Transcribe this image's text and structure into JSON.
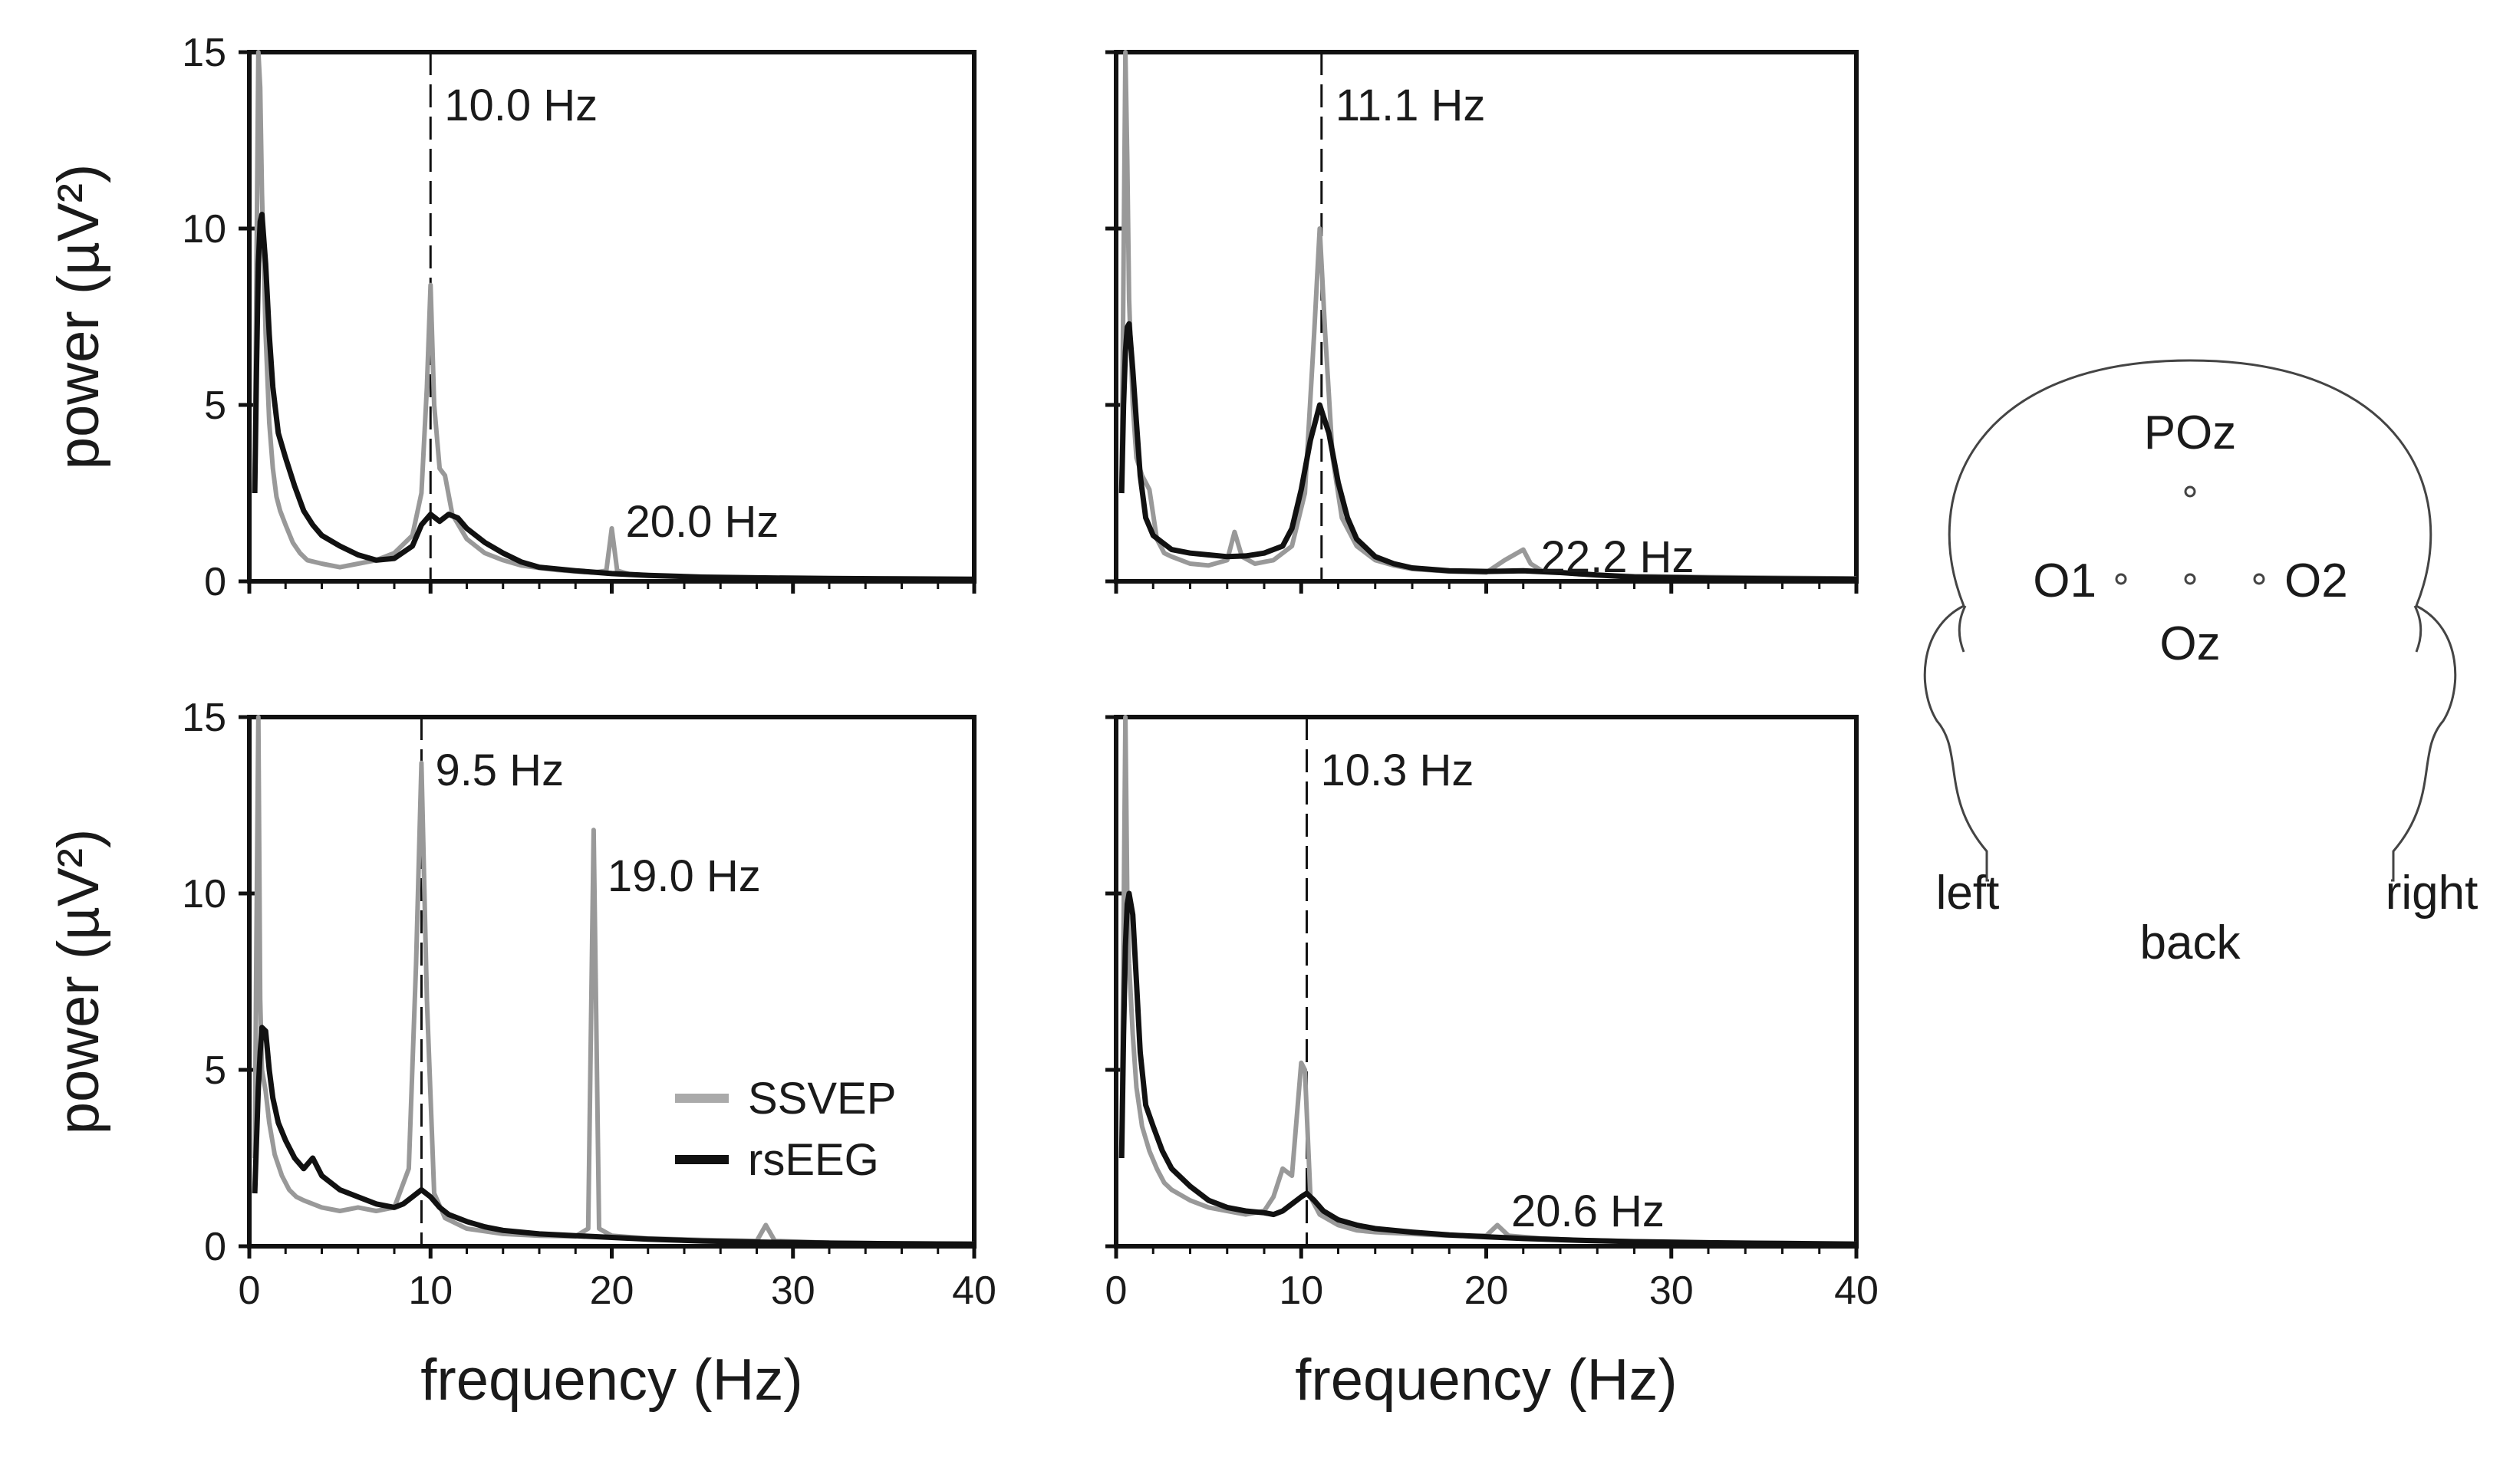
{
  "chart_data": [
    {
      "type": "line",
      "panel": "top-left",
      "ylabel": "power (µV²)",
      "xlabel": "",
      "xlim": [
        0,
        40
      ],
      "ylim": [
        0,
        15
      ],
      "xticks": [
        "0",
        "10",
        "20",
        "30",
        "40"
      ],
      "yticks": [
        "0",
        "5",
        "10",
        "15"
      ],
      "show_xticks": false,
      "show_ylabels": true,
      "marker_line": 10.0,
      "peak_labels": [
        {
          "text": "10.0 Hz",
          "x": 10.0,
          "y": 13.5
        },
        {
          "text": "20.0 Hz",
          "x": 20.0,
          "y": 1.7
        }
      ],
      "series": [
        {
          "name": "SSVEP",
          "color": "#999999",
          "x": [
            0.3,
            0.4,
            0.5,
            0.6,
            0.7,
            0.9,
            1.1,
            1.3,
            1.5,
            1.7,
            2.0,
            2.4,
            2.8,
            3.2,
            4,
            5,
            6,
            7,
            8,
            9,
            9.5,
            9.8,
            10.0,
            10.2,
            10.5,
            10.8,
            11.2,
            12,
            13,
            14,
            15,
            16,
            17,
            18,
            19,
            19.7,
            20.0,
            20.3,
            21,
            23,
            25,
            28,
            32,
            36,
            40
          ],
          "y": [
            2.5,
            9,
            16,
            14,
            11,
            7,
            4.5,
            3.2,
            2.4,
            2.0,
            1.6,
            1.1,
            0.8,
            0.6,
            0.5,
            0.4,
            0.5,
            0.6,
            0.8,
            1.3,
            2.5,
            5.5,
            8.4,
            5,
            3.2,
            3.0,
            1.9,
            1.2,
            0.8,
            0.6,
            0.45,
            0.38,
            0.32,
            0.28,
            0.25,
            0.3,
            1.5,
            0.3,
            0.2,
            0.15,
            0.12,
            0.1,
            0.08,
            0.07,
            0.06
          ]
        },
        {
          "name": "rsEEG",
          "color": "#111111",
          "x": [
            0.3,
            0.4,
            0.5,
            0.6,
            0.7,
            0.9,
            1.1,
            1.3,
            1.6,
            2.0,
            2.5,
            3,
            3.5,
            4,
            5,
            6,
            7,
            8,
            9,
            9.5,
            10,
            10.5,
            11,
            11.5,
            12,
            13,
            14,
            15,
            16,
            18,
            20,
            22,
            25,
            28,
            32,
            36,
            40
          ],
          "y": [
            2.5,
            6,
            9,
            10.2,
            10.4,
            9,
            7,
            5.5,
            4.2,
            3.5,
            2.7,
            2.0,
            1.6,
            1.3,
            1.0,
            0.75,
            0.6,
            0.65,
            1.0,
            1.6,
            1.9,
            1.7,
            1.9,
            1.8,
            1.5,
            1.1,
            0.8,
            0.55,
            0.4,
            0.3,
            0.22,
            0.17,
            0.12,
            0.1,
            0.08,
            0.07,
            0.06
          ]
        }
      ]
    },
    {
      "type": "line",
      "panel": "top-right",
      "ylabel": "",
      "xlabel": "",
      "xlim": [
        0,
        40
      ],
      "ylim": [
        0,
        15
      ],
      "xticks": [
        "0",
        "10",
        "20",
        "30",
        "40"
      ],
      "yticks": [
        "0",
        "5",
        "10",
        "15"
      ],
      "show_xticks": false,
      "show_ylabels": false,
      "marker_line": 11.1,
      "peak_labels": [
        {
          "text": "11.1 Hz",
          "x": 11.1,
          "y": 13.5
        },
        {
          "text": "22.2 Hz",
          "x": 22.2,
          "y": 0.7
        }
      ],
      "series": [
        {
          "name": "SSVEP",
          "color": "#999999",
          "x": [
            0.3,
            0.4,
            0.5,
            0.6,
            0.7,
            0.9,
            1.1,
            1.4,
            1.8,
            2.2,
            2.6,
            3,
            4,
            5,
            6,
            6.4,
            6.8,
            7.5,
            8.5,
            9.5,
            10.2,
            10.7,
            11.0,
            11.3,
            11.7,
            12.2,
            13,
            14,
            15,
            16,
            18,
            20,
            21,
            22.0,
            22.4,
            23,
            25,
            28,
            32,
            36,
            40
          ],
          "y": [
            2.5,
            9,
            15,
            12,
            8,
            5,
            3.5,
            3.0,
            2.6,
            1.2,
            0.8,
            0.7,
            0.5,
            0.45,
            0.6,
            1.4,
            0.7,
            0.5,
            0.6,
            1.0,
            2.5,
            7,
            10,
            7,
            3.5,
            1.8,
            1.0,
            0.6,
            0.45,
            0.35,
            0.28,
            0.25,
            0.6,
            0.9,
            0.5,
            0.3,
            0.2,
            0.15,
            0.12,
            0.1,
            0.08
          ]
        },
        {
          "name": "rsEEG",
          "color": "#111111",
          "x": [
            0.3,
            0.4,
            0.5,
            0.6,
            0.7,
            0.9,
            1.1,
            1.3,
            1.6,
            2.0,
            2.5,
            3,
            4,
            5,
            6,
            7,
            8,
            9,
            9.5,
            10,
            10.5,
            11.0,
            11.5,
            12,
            12.5,
            13,
            14,
            15,
            16,
            18,
            20,
            22,
            24,
            26,
            28,
            32,
            36,
            40
          ],
          "y": [
            2.5,
            5,
            6.5,
            7.2,
            7.3,
            6.0,
            4.5,
            3.0,
            1.8,
            1.3,
            1.1,
            0.9,
            0.8,
            0.75,
            0.7,
            0.72,
            0.8,
            1.0,
            1.5,
            2.6,
            4.0,
            5.0,
            4.2,
            2.8,
            1.8,
            1.2,
            0.7,
            0.5,
            0.38,
            0.3,
            0.28,
            0.3,
            0.25,
            0.18,
            0.12,
            0.09,
            0.07,
            0.06
          ]
        }
      ]
    },
    {
      "type": "line",
      "panel": "bottom-left",
      "ylabel": "power (µV²)",
      "xlabel": "frequency (Hz)",
      "xlim": [
        0,
        40
      ],
      "ylim": [
        0,
        15
      ],
      "xticks": [
        "0",
        "10",
        "20",
        "30",
        "40"
      ],
      "yticks": [
        "0",
        "5",
        "10",
        "15"
      ],
      "show_xticks": true,
      "show_ylabels": true,
      "marker_line": 9.5,
      "peak_labels": [
        {
          "text": "9.5 Hz",
          "x": 9.5,
          "y": 13.5
        },
        {
          "text": "19.0 Hz",
          "x": 19.0,
          "y": 10.5
        }
      ],
      "series": [
        {
          "name": "SSVEP",
          "color": "#999999",
          "x": [
            0.3,
            0.4,
            0.5,
            0.6,
            0.7,
            0.9,
            1.1,
            1.4,
            1.8,
            2.2,
            2.6,
            3,
            3.5,
            4,
            5,
            6,
            7,
            8,
            8.8,
            9.2,
            9.5,
            9.8,
            10.2,
            10.8,
            12,
            14,
            16,
            18,
            18.7,
            19.0,
            19.3,
            20,
            22,
            25,
            28,
            28.5,
            29,
            32,
            36,
            40
          ],
          "y": [
            2.5,
            9,
            15,
            7,
            5,
            4.4,
            3.5,
            2.6,
            2.0,
            1.6,
            1.4,
            1.3,
            1.2,
            1.1,
            1.0,
            1.1,
            1.0,
            1.1,
            2.2,
            8,
            13.7,
            7,
            1.5,
            0.8,
            0.5,
            0.35,
            0.3,
            0.28,
            0.5,
            11.8,
            0.5,
            0.3,
            0.22,
            0.18,
            0.15,
            0.6,
            0.15,
            0.1,
            0.08,
            0.07
          ]
        },
        {
          "name": "rsEEG",
          "color": "#111111",
          "x": [
            0.3,
            0.4,
            0.5,
            0.6,
            0.7,
            0.9,
            1.1,
            1.3,
            1.6,
            2.0,
            2.5,
            3,
            3.5,
            4,
            5,
            6,
            7,
            8,
            8.5,
            9,
            9.5,
            10,
            10.5,
            11,
            12,
            13,
            14,
            16,
            18,
            20,
            22,
            25,
            28,
            32,
            36,
            40
          ],
          "y": [
            1.5,
            3,
            4.5,
            5.5,
            6.2,
            6.1,
            5.0,
            4.2,
            3.5,
            3.0,
            2.5,
            2.2,
            2.5,
            2.0,
            1.6,
            1.4,
            1.2,
            1.1,
            1.2,
            1.4,
            1.6,
            1.4,
            1.1,
            0.9,
            0.7,
            0.55,
            0.45,
            0.35,
            0.3,
            0.25,
            0.2,
            0.15,
            0.12,
            0.09,
            0.07,
            0.06
          ]
        }
      ]
    },
    {
      "type": "line",
      "panel": "bottom-right",
      "ylabel": "",
      "xlabel": "frequency (Hz)",
      "xlim": [
        0,
        40
      ],
      "ylim": [
        0,
        15
      ],
      "xticks": [
        "0",
        "10",
        "20",
        "30",
        "40"
      ],
      "yticks": [
        "0",
        "5",
        "10",
        "15"
      ],
      "show_xticks": true,
      "show_ylabels": false,
      "marker_line": 10.3,
      "peak_labels": [
        {
          "text": "10.3 Hz",
          "x": 10.3,
          "y": 13.5
        },
        {
          "text": "20.6 Hz",
          "x": 20.6,
          "y": 1.0
        }
      ],
      "series": [
        {
          "name": "SSVEP",
          "color": "#999999",
          "x": [
            0.3,
            0.4,
            0.5,
            0.6,
            0.7,
            0.9,
            1.1,
            1.4,
            1.8,
            2.2,
            2.6,
            3,
            4,
            5,
            6,
            7,
            8,
            8.5,
            9,
            9.5,
            10.0,
            10.2,
            10.5,
            11,
            12,
            13,
            14,
            16,
            18,
            20.0,
            20.6,
            21.2,
            23,
            25,
            28,
            32,
            36,
            40
          ],
          "y": [
            2.5,
            9,
            15,
            10,
            8,
            6,
            4.5,
            3.4,
            2.7,
            2.2,
            1.8,
            1.6,
            1.3,
            1.1,
            1.0,
            0.9,
            1.0,
            1.4,
            2.2,
            2.0,
            5.2,
            5.0,
            1.4,
            0.9,
            0.6,
            0.45,
            0.4,
            0.35,
            0.3,
            0.3,
            0.6,
            0.3,
            0.22,
            0.18,
            0.14,
            0.1,
            0.08,
            0.07
          ]
        },
        {
          "name": "rsEEG",
          "color": "#111111",
          "x": [
            0.3,
            0.4,
            0.5,
            0.6,
            0.7,
            0.9,
            1.1,
            1.3,
            1.6,
            2.0,
            2.5,
            3,
            4,
            5,
            6,
            7,
            8,
            8.5,
            9,
            9.5,
            10,
            10.3,
            10.7,
            11.2,
            12,
            13,
            14,
            16,
            18,
            20,
            22,
            25,
            28,
            32,
            36,
            40
          ],
          "y": [
            2.5,
            6,
            8.5,
            9.7,
            10.0,
            9.4,
            7.5,
            5.5,
            4.0,
            3.4,
            2.7,
            2.2,
            1.7,
            1.3,
            1.1,
            1.0,
            0.95,
            0.9,
            1.0,
            1.2,
            1.4,
            1.5,
            1.3,
            1.0,
            0.75,
            0.6,
            0.5,
            0.4,
            0.32,
            0.27,
            0.22,
            0.17,
            0.13,
            0.1,
            0.08,
            0.06
          ]
        }
      ]
    }
  ],
  "legend": {
    "items": [
      {
        "label": "SSVEP",
        "color": "#aaaaaa"
      },
      {
        "label": "rsEEG",
        "color": "#111111"
      }
    ]
  },
  "head_diagram": {
    "electrodes": [
      "POz",
      "O1",
      "Oz",
      "O2"
    ],
    "side_labels": {
      "left": "left",
      "right": "right",
      "back": "back"
    }
  }
}
